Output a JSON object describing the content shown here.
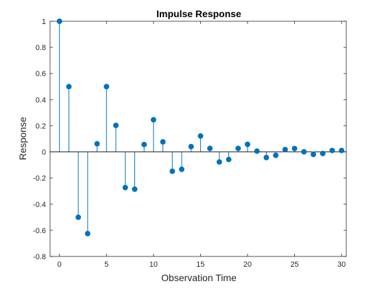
{
  "chart_data": {
    "type": "stem",
    "title": "Impulse Response",
    "xlabel": "Observation Time",
    "ylabel": "Response",
    "xlim": [
      -1,
      30.5
    ],
    "ylim": [
      -0.8,
      1
    ],
    "xticks": [
      0,
      5,
      10,
      15,
      20,
      25,
      30
    ],
    "yticks": [
      -0.8,
      -0.6,
      -0.4,
      -0.2,
      0,
      0.2,
      0.4,
      0.6,
      0.8,
      1
    ],
    "ytick_labels": [
      "-0.8",
      "-0.6",
      "-0.4",
      "-0.2",
      "0",
      "0.2",
      "0.4",
      "0.6",
      "0.8",
      "1"
    ],
    "grid": false,
    "color": "#0072BD",
    "x": [
      0,
      1,
      2,
      3,
      4,
      5,
      6,
      7,
      8,
      9,
      10,
      11,
      12,
      13,
      14,
      15,
      16,
      17,
      18,
      19,
      20,
      21,
      22,
      23,
      24,
      25,
      26,
      27,
      28,
      29,
      30
    ],
    "values": [
      1,
      0.5,
      -0.5,
      -0.625,
      0.0625,
      0.5,
      0.203,
      -0.273,
      -0.285,
      0.057,
      0.246,
      0.077,
      -0.148,
      -0.133,
      0.041,
      0.122,
      0.027,
      -0.077,
      -0.058,
      0.027,
      0.058,
      0.006,
      -0.043,
      -0.026,
      0.018,
      0.026,
      0.001,
      -0.019,
      -0.012,
      0.011,
      0.011
    ]
  }
}
